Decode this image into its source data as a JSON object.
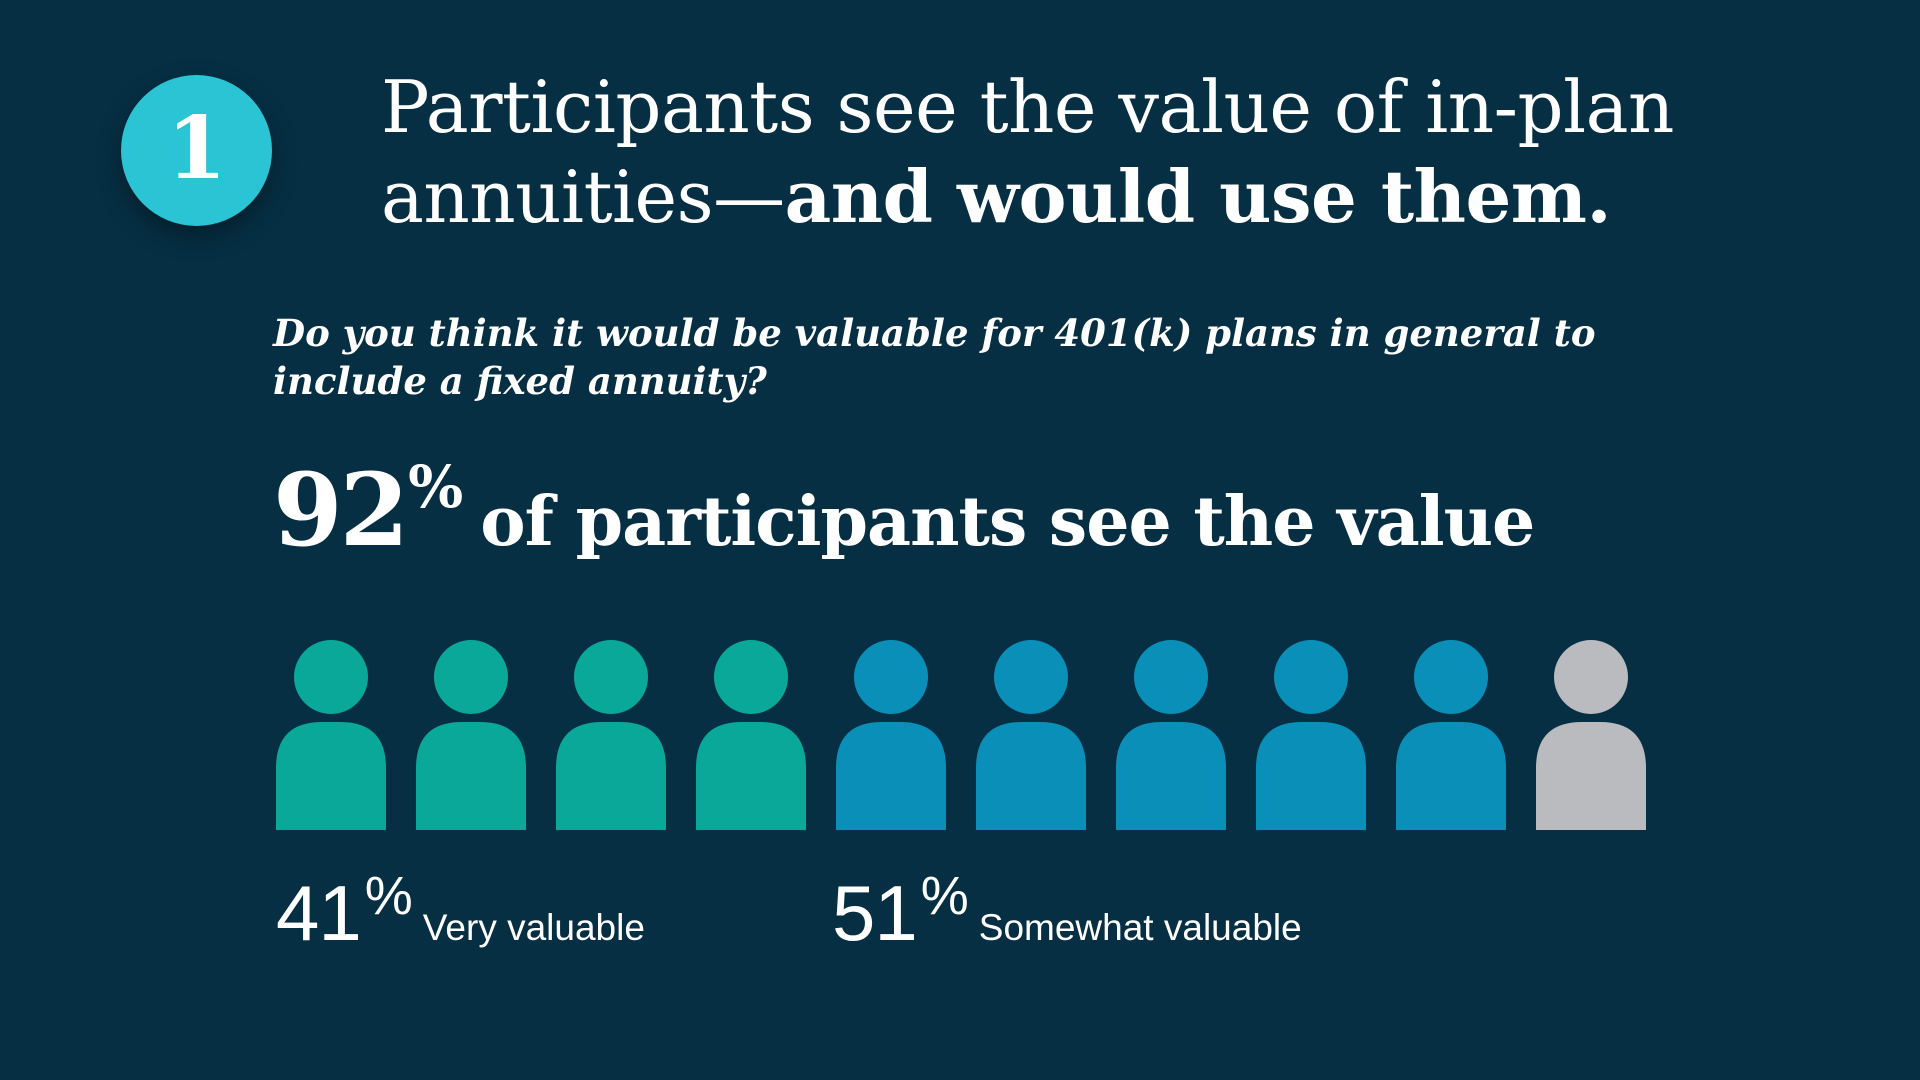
{
  "badge_number": "1",
  "title": {
    "regular": "Participants see the value of in-plan annuities—",
    "bold": "and would use them."
  },
  "question": "Do you think it would be valuable for 401(k) plans in general to include a fixed annuity?",
  "headline": {
    "number": "92",
    "percent_sign": "%",
    "text": "of participants see the value"
  },
  "colors": {
    "background": "#062f43",
    "badge": "#2bc4d4",
    "very_valuable": "#09a898",
    "somewhat_valuable": "#0a8fb8",
    "other": "#b9bbbe"
  },
  "chart_data": {
    "type": "pictogram",
    "total_icons": 10,
    "segments": [
      {
        "name": "Very valuable",
        "value": 41,
        "icons": 4,
        "color": "#09a898"
      },
      {
        "name": "Somewhat valuable",
        "value": 51,
        "icons": 5,
        "color": "#0a8fb8"
      },
      {
        "name": "",
        "value": 8,
        "icons": 1,
        "color": "#b9bbbe"
      }
    ],
    "labels": [
      {
        "value": "41",
        "unit": "%",
        "text": "Very valuable"
      },
      {
        "value": "51",
        "unit": "%",
        "text": "Somewhat valuable"
      }
    ]
  }
}
